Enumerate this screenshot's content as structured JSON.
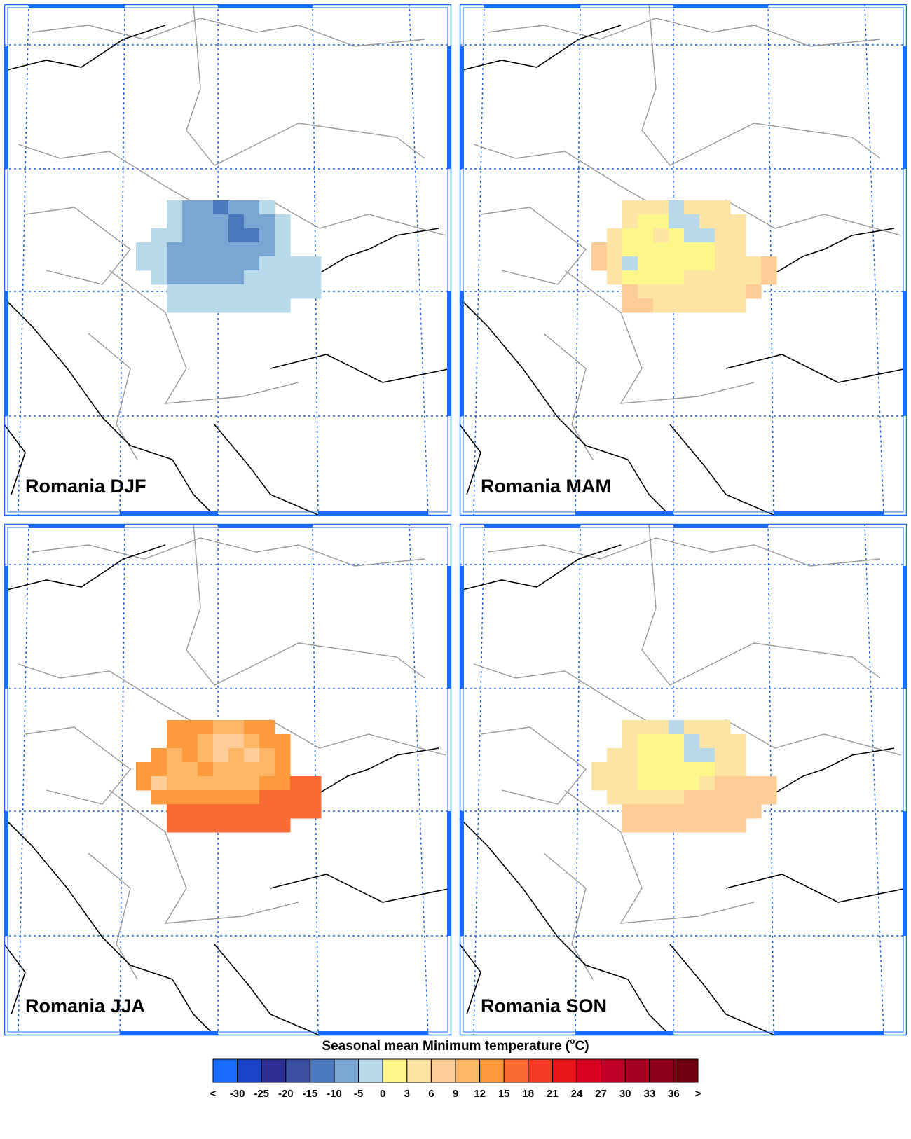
{
  "panels": [
    {
      "label": "Romania DJF",
      "grid": [
        [
          null,
          null,
          -3,
          -7,
          -7,
          -12,
          -7,
          -7,
          -3,
          null,
          null,
          null
        ],
        [
          null,
          null,
          -3,
          -7,
          -7,
          -7,
          -12,
          -7,
          -7,
          -3,
          null,
          null
        ],
        [
          null,
          -3,
          -3,
          -7,
          -7,
          -7,
          -12,
          -12,
          -7,
          -3,
          null,
          null
        ],
        [
          -3,
          -3,
          -7,
          -7,
          -7,
          -7,
          -7,
          -7,
          -7,
          -3,
          null,
          null
        ],
        [
          -3,
          -3,
          -7,
          -7,
          -7,
          -7,
          -7,
          -7,
          -3,
          -3,
          -3,
          -3
        ],
        [
          null,
          -3,
          -7,
          -7,
          -7,
          -7,
          -7,
          -3,
          -3,
          -3,
          -3,
          -3
        ],
        [
          null,
          null,
          -3,
          -3,
          -3,
          -3,
          -3,
          -3,
          -3,
          -3,
          -3,
          -3
        ],
        [
          null,
          null,
          -3,
          -3,
          -3,
          -3,
          -3,
          -3,
          -3,
          -3,
          null,
          null
        ]
      ]
    },
    {
      "label": "Romania MAM",
      "grid": [
        [
          null,
          null,
          5,
          5,
          5,
          -2,
          5,
          5,
          5,
          null,
          null,
          null
        ],
        [
          null,
          null,
          5,
          2,
          2,
          -2,
          -2,
          5,
          5,
          5,
          null,
          null
        ],
        [
          null,
          5,
          2,
          2,
          5,
          2,
          -2,
          -2,
          5,
          5,
          null,
          null
        ],
        [
          7,
          5,
          2,
          2,
          2,
          2,
          2,
          2,
          5,
          5,
          null,
          null
        ],
        [
          7,
          5,
          -2,
          2,
          2,
          2,
          2,
          2,
          5,
          5,
          5,
          7
        ],
        [
          null,
          5,
          2,
          2,
          2,
          2,
          5,
          5,
          5,
          5,
          5,
          7
        ],
        [
          null,
          null,
          7,
          5,
          5,
          5,
          5,
          5,
          5,
          5,
          7,
          null
        ],
        [
          null,
          null,
          7,
          7,
          5,
          5,
          5,
          5,
          5,
          5,
          null,
          null
        ]
      ]
    },
    {
      "label": "Romania JJA",
      "grid": [
        [
          null,
          null,
          13,
          13,
          13,
          10,
          10,
          13,
          13,
          null,
          null,
          null
        ],
        [
          null,
          null,
          13,
          13,
          10,
          7,
          7,
          10,
          13,
          13,
          null,
          null
        ],
        [
          null,
          13,
          10,
          13,
          10,
          7,
          10,
          7,
          10,
          13,
          null,
          null
        ],
        [
          13,
          13,
          10,
          10,
          13,
          10,
          10,
          10,
          10,
          13,
          null,
          null
        ],
        [
          13,
          7,
          10,
          10,
          10,
          10,
          10,
          10,
          13,
          13,
          16,
          16
        ],
        [
          null,
          13,
          13,
          13,
          13,
          13,
          13,
          13,
          16,
          16,
          16,
          16
        ],
        [
          null,
          null,
          16,
          16,
          16,
          16,
          16,
          16,
          16,
          16,
          16,
          16
        ],
        [
          null,
          null,
          16,
          16,
          16,
          16,
          16,
          16,
          16,
          16,
          null,
          null
        ]
      ]
    },
    {
      "label": "Romania SON",
      "grid": [
        [
          null,
          null,
          5,
          5,
          5,
          -2,
          5,
          5,
          5,
          null,
          null,
          null
        ],
        [
          null,
          null,
          5,
          2,
          2,
          2,
          -2,
          5,
          5,
          5,
          null,
          null
        ],
        [
          null,
          5,
          5,
          2,
          2,
          2,
          -2,
          -2,
          5,
          5,
          null,
          null
        ],
        [
          5,
          5,
          5,
          2,
          2,
          2,
          2,
          2,
          5,
          5,
          null,
          null
        ],
        [
          5,
          5,
          5,
          2,
          2,
          2,
          2,
          5,
          7,
          7,
          7,
          7
        ],
        [
          null,
          5,
          5,
          5,
          5,
          5,
          7,
          7,
          7,
          7,
          7,
          7
        ],
        [
          null,
          null,
          7,
          7,
          7,
          7,
          7,
          7,
          7,
          7,
          7,
          null
        ],
        [
          null,
          null,
          7,
          7,
          7,
          7,
          7,
          7,
          7,
          7,
          null,
          null
        ]
      ]
    }
  ],
  "colorbar": {
    "title_parts": [
      "Seasonal mean Minimum temperature (",
      "o",
      "C)"
    ],
    "levels": [
      -30,
      -25,
      -20,
      -15,
      -10,
      -5,
      0,
      3,
      6,
      9,
      12,
      15,
      18,
      21,
      24,
      27,
      30,
      33,
      36
    ],
    "end_labels": [
      "<",
      ">"
    ],
    "colors": [
      "#1a6cff",
      "#1c44c8",
      "#2d2f94",
      "#3b4fa0",
      "#4a78bd",
      "#79a6d2",
      "#b8d9ea",
      "#fff68a",
      "#fde4a4",
      "#fecc96",
      "#fdb566",
      "#fd9a3c",
      "#fb6a32",
      "#f43c24",
      "#e7161b",
      "#d6001f",
      "#be0026",
      "#a40021",
      "#8e0019",
      "#6e0010"
    ]
  }
}
